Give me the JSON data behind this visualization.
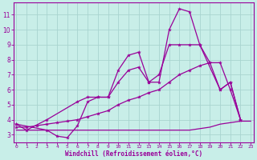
{
  "background_color": "#c8eee8",
  "grid_color": "#a8d4d0",
  "line_color": "#990099",
  "xlabel": "Windchill (Refroidissement éolien,°C)",
  "xlim": [
    -0.3,
    23.3
  ],
  "ylim": [
    2.5,
    11.8
  ],
  "yticks": [
    3,
    4,
    5,
    6,
    7,
    8,
    9,
    10,
    11
  ],
  "xticks": [
    0,
    1,
    2,
    3,
    4,
    5,
    6,
    7,
    8,
    9,
    10,
    11,
    12,
    13,
    14,
    15,
    16,
    17,
    18,
    19,
    20,
    21,
    22,
    23
  ],
  "series": [
    {
      "x": [
        0,
        1,
        3,
        6,
        7,
        8,
        9,
        10,
        11,
        12,
        13,
        14,
        15,
        16,
        17,
        18,
        20,
        21,
        22
      ],
      "y": [
        3.7,
        3.3,
        4.0,
        5.2,
        5.5,
        5.5,
        5.5,
        7.3,
        8.3,
        8.5,
        6.5,
        6.5,
        10.0,
        11.4,
        11.2,
        9.0,
        6.0,
        6.5,
        4.0
      ]
    },
    {
      "x": [
        0,
        3,
        4,
        5,
        6,
        7,
        8,
        9,
        10,
        11,
        12,
        13,
        14,
        15,
        16,
        17,
        18,
        19,
        20,
        21,
        22
      ],
      "y": [
        3.7,
        3.3,
        2.9,
        2.8,
        3.6,
        5.2,
        5.5,
        5.5,
        6.5,
        7.3,
        7.5,
        6.5,
        7.0,
        9.0,
        9.0,
        9.0,
        9.0,
        7.8,
        6.0,
        6.5,
        4.0
      ]
    },
    {
      "x": [
        0,
        1,
        2,
        3,
        4,
        5,
        6,
        7,
        8,
        9,
        10,
        11,
        12,
        13,
        14,
        15,
        16,
        17,
        18,
        19,
        20,
        21,
        22
      ],
      "y": [
        3.5,
        3.5,
        3.6,
        3.7,
        3.8,
        3.9,
        4.0,
        4.2,
        4.4,
        4.6,
        5.0,
        5.3,
        5.5,
        5.8,
        6.0,
        6.5,
        7.0,
        7.3,
        7.6,
        7.8,
        7.8,
        6.0,
        4.0
      ]
    },
    {
      "x": [
        0,
        1,
        2,
        3,
        4,
        5,
        6,
        7,
        8,
        9,
        10,
        11,
        12,
        13,
        14,
        15,
        16,
        17,
        18,
        19,
        20,
        21,
        22,
        23
      ],
      "y": [
        3.3,
        3.3,
        3.3,
        3.3,
        3.3,
        3.3,
        3.3,
        3.3,
        3.3,
        3.3,
        3.3,
        3.3,
        3.3,
        3.3,
        3.3,
        3.3,
        3.3,
        3.3,
        3.4,
        3.5,
        3.7,
        3.8,
        3.9,
        3.9
      ]
    }
  ]
}
